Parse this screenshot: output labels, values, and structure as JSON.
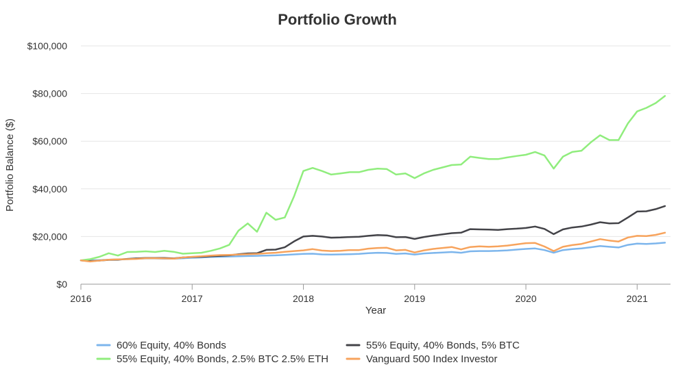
{
  "chart_data": {
    "type": "line",
    "title": "Portfolio Growth",
    "xlabel": "Year",
    "ylabel": "Portfolio Balance ($)",
    "xlim": [
      2016.0,
      2021.3
    ],
    "ylim": [
      0,
      100000
    ],
    "x_ticks": [
      2016,
      2017,
      2018,
      2019,
      2020,
      2021
    ],
    "x_tick_labels": [
      "2016",
      "2017",
      "2018",
      "2019",
      "2020",
      "2021"
    ],
    "y_ticks": [
      0,
      20000,
      40000,
      60000,
      80000,
      100000
    ],
    "y_tick_labels": [
      "$0",
      "$20,000",
      "$40,000",
      "$60,000",
      "$80,000",
      "$100,000"
    ],
    "grid": "horizontal",
    "legend_position": "bottom",
    "x": [
      2016.0,
      2016.083,
      2016.167,
      2016.25,
      2016.333,
      2016.417,
      2016.5,
      2016.583,
      2016.667,
      2016.75,
      2016.833,
      2016.917,
      2017.0,
      2017.083,
      2017.167,
      2017.25,
      2017.333,
      2017.417,
      2017.5,
      2017.583,
      2017.667,
      2017.75,
      2017.833,
      2017.917,
      2018.0,
      2018.083,
      2018.167,
      2018.25,
      2018.333,
      2018.417,
      2018.5,
      2018.583,
      2018.667,
      2018.75,
      2018.833,
      2018.917,
      2019.0,
      2019.083,
      2019.167,
      2019.25,
      2019.333,
      2019.417,
      2019.5,
      2019.583,
      2019.667,
      2019.75,
      2019.833,
      2019.917,
      2020.0,
      2020.083,
      2020.167,
      2020.25,
      2020.333,
      2020.417,
      2020.5,
      2020.583,
      2020.667,
      2020.75,
      2020.833,
      2020.917,
      2021.0,
      2021.083,
      2021.167,
      2021.25
    ],
    "series": [
      {
        "name": "60% Equity, 40% Bonds",
        "color": "#7cb5ec",
        "values": [
          10000,
          9900,
          10100,
          10300,
          10400,
          10500,
          10700,
          10800,
          10800,
          10700,
          10700,
          10900,
          11100,
          11200,
          11400,
          11500,
          11600,
          11700,
          11800,
          11900,
          12000,
          12100,
          12300,
          12500,
          12700,
          12800,
          12500,
          12400,
          12500,
          12600,
          12700,
          13000,
          13200,
          13100,
          12700,
          12900,
          12400,
          12900,
          13100,
          13300,
          13500,
          13200,
          13800,
          13900,
          13900,
          14000,
          14200,
          14500,
          14800,
          15000,
          14300,
          13200,
          14300,
          14700,
          15000,
          15500,
          16000,
          15700,
          15400,
          16500,
          17000,
          16900,
          17100,
          17400
        ]
      },
      {
        "name": "55% Equity, 40% Bonds, 5% BTC",
        "color": "#434348",
        "values": [
          10000,
          9700,
          9900,
          10200,
          10300,
          10600,
          10800,
          11000,
          11000,
          11000,
          10800,
          11200,
          11400,
          11500,
          11700,
          11900,
          12100,
          12600,
          12900,
          13000,
          14400,
          14500,
          15500,
          18000,
          20000,
          20300,
          20000,
          19500,
          19600,
          19800,
          19900,
          20300,
          20600,
          20500,
          19700,
          19800,
          19000,
          19800,
          20400,
          20900,
          21400,
          21600,
          23100,
          23000,
          22900,
          22800,
          23100,
          23300,
          23600,
          24200,
          23200,
          21000,
          23000,
          23800,
          24200,
          25000,
          26000,
          25500,
          25600,
          28000,
          30500,
          30600,
          31500,
          32800
        ]
      },
      {
        "name": "55% Equity, 40% Bonds, 2.5% BTC 2.5% ETH",
        "color": "#90ed7d",
        "values": [
          10000,
          10500,
          11500,
          13000,
          12000,
          13500,
          13600,
          13800,
          13500,
          14000,
          13600,
          12800,
          13000,
          13200,
          14000,
          15000,
          16500,
          22500,
          25500,
          22000,
          30000,
          27000,
          28000,
          37000,
          47500,
          48800,
          47500,
          46000,
          46500,
          47000,
          47000,
          48000,
          48500,
          48300,
          46000,
          46500,
          44500,
          46500,
          48000,
          49000,
          50000,
          50200,
          53500,
          53000,
          52500,
          52500,
          53200,
          53800,
          54300,
          55500,
          54000,
          48500,
          53500,
          55500,
          56000,
          59500,
          62500,
          60500,
          60500,
          67500,
          72500,
          74000,
          76000,
          79000
        ]
      },
      {
        "name": "Vanguard 500 Index Investor",
        "color": "#f7a35c",
        "values": [
          10000,
          9500,
          9900,
          10300,
          10400,
          10500,
          10600,
          10900,
          10900,
          10800,
          10700,
          11200,
          11500,
          11700,
          12000,
          12200,
          12300,
          12400,
          12600,
          12700,
          13000,
          13200,
          13600,
          13900,
          14200,
          14700,
          14100,
          13900,
          14000,
          14300,
          14300,
          14900,
          15200,
          15300,
          14200,
          14400,
          13300,
          14200,
          14800,
          15200,
          15600,
          14600,
          15600,
          15900,
          15700,
          15900,
          16200,
          16700,
          17200,
          17300,
          15800,
          13900,
          15700,
          16400,
          16900,
          17900,
          18900,
          18300,
          17900,
          19600,
          20300,
          20200,
          20700,
          21600
        ]
      }
    ]
  }
}
